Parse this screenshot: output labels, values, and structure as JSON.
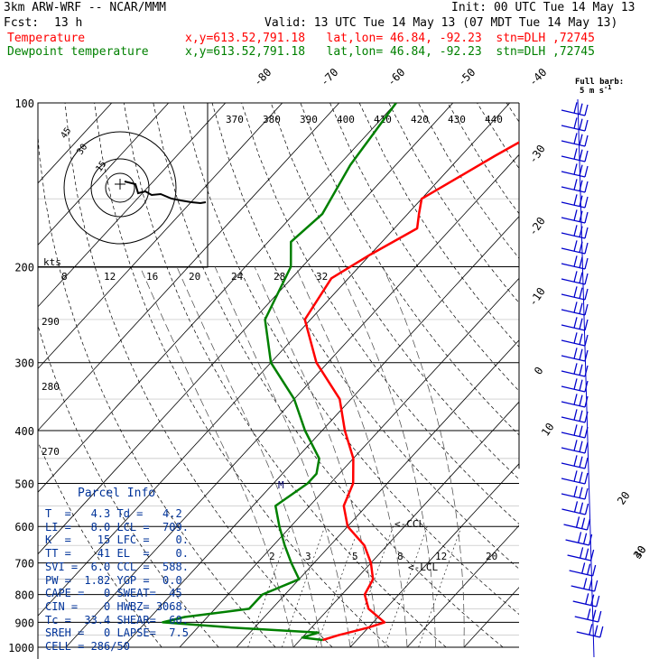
{
  "header": {
    "model": "3km ARW-WRF -- NCAR/MMM",
    "init": "Init: 00 UTC Tue 14 May 13",
    "fcst_label": "Fcst:",
    "fcst_value": "13 h",
    "valid": "Valid: 13 UTC Tue 14 May 13 (07 MDT Tue 14 May 13)",
    "temp_label": "Temperature",
    "temp_loc": "x,y=613.52,791.18   lat,lon= 46.84, -92.23  stn=DLH ,72745",
    "dew_label": "Dewpoint temperature",
    "dew_loc": "x,y=613.52,791.18   lat,lon= 46.84, -92.23  stn=DLH ,72745"
  },
  "wind_key": {
    "line1": "Full barb:",
    "line2": "5 m s",
    "line3": "-1"
  },
  "parcel_info": {
    "title": "Parcel Info",
    "rows": [
      "T  =   4.3 Td =   4.2",
      "LI =   8.0 LCL =  709.",
      "K  =    15 LFC =    0.",
      "TT =    41 EL  =    0.",
      "SVI =  6.0 CCL =  588.",
      "PW =  1.82 YGP =  0.0",
      "CAPE =   0 SWEAT=  45",
      "CIN =    0 HWBZ= 3068.",
      "Tc =  33.4 SHEAR=  60.",
      "SREH =   0 LAPSE=  7.5",
      "CELL = 286/50"
    ]
  },
  "hodograph": {
    "ring_labels": [
      "15",
      "30",
      "45"
    ],
    "kts_label": "kts"
  },
  "chart_data": {
    "type": "line",
    "title": "",
    "xlabel": "",
    "ylabel": "",
    "pressure_levels": [
      100,
      200,
      300,
      400,
      500,
      600,
      700,
      800,
      900,
      1000
    ],
    "pressure_labels": [
      "100",
      "200",
      "300",
      "400",
      "500",
      "600",
      "700",
      "800",
      "900",
      "1000"
    ],
    "isotherm_labels_top": [
      "-80",
      "-70",
      "-60",
      "-50",
      "-40"
    ],
    "isotherm_labels_right": [
      "-30",
      "-20",
      "-10",
      "0",
      "10",
      "20",
      "30",
      "40"
    ],
    "potential_temp_labels": [
      "370",
      "380",
      "390",
      "400",
      "410",
      "420",
      "430",
      "440"
    ],
    "potential_temp_labels_left": [
      "290",
      "280",
      "270"
    ],
    "mixing_ratio_labels": [
      "2",
      "3",
      "5",
      "8",
      "12",
      "20"
    ],
    "thetae_labels": [
      "8",
      "12",
      "16",
      "20",
      "24",
      "28",
      "32"
    ],
    "annotations": {
      "ccl": "<-CCL",
      "lcl": "<-LCL",
      "m_mark": "M"
    },
    "series": [
      {
        "name": "Temperature",
        "color": "#ff0000",
        "points": [
          [
            100,
            -36
          ],
          [
            125,
            -44
          ],
          [
            150,
            -50
          ],
          [
            160,
            -48
          ],
          [
            170,
            -46
          ],
          [
            190,
            -50
          ],
          [
            210,
            -53
          ],
          [
            250,
            -51
          ],
          [
            300,
            -42
          ],
          [
            350,
            -32
          ],
          [
            400,
            -26
          ],
          [
            450,
            -20
          ],
          [
            500,
            -16
          ],
          [
            550,
            -14
          ],
          [
            600,
            -10
          ],
          [
            650,
            -4
          ],
          [
            700,
            0
          ],
          [
            750,
            3
          ],
          [
            800,
            4
          ],
          [
            850,
            7
          ],
          [
            900,
            12
          ],
          [
            920,
            10
          ],
          [
            950,
            6
          ],
          [
            970,
            4
          ]
        ]
      },
      {
        "name": "Dewpoint temperature",
        "color": "#008000",
        "points": [
          [
            100,
            -70
          ],
          [
            130,
            -68
          ],
          [
            160,
            -65
          ],
          [
            180,
            -66
          ],
          [
            200,
            -62
          ],
          [
            250,
            -58
          ],
          [
            300,
            -50
          ],
          [
            350,
            -40
          ],
          [
            400,
            -33
          ],
          [
            450,
            -26
          ],
          [
            480,
            -24
          ],
          [
            500,
            -24
          ],
          [
            550,
            -26
          ],
          [
            600,
            -22
          ],
          [
            650,
            -18
          ],
          [
            700,
            -14
          ],
          [
            750,
            -10
          ],
          [
            800,
            -14
          ],
          [
            850,
            -14
          ],
          [
            880,
            -24
          ],
          [
            900,
            -27
          ],
          [
            920,
            -14
          ],
          [
            940,
            2
          ],
          [
            960,
            0
          ],
          [
            970,
            4
          ]
        ]
      }
    ]
  },
  "colors": {
    "temperature": "#ff0000",
    "dewpoint": "#008000",
    "parcel": "#003399",
    "wind": "#0000cc"
  }
}
